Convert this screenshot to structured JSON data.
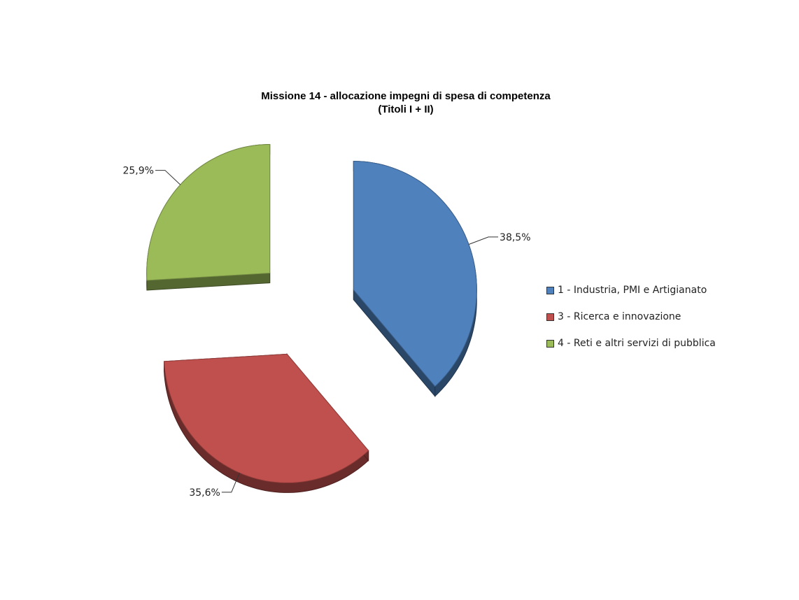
{
  "chart_data": {
    "type": "pie",
    "title_lines": [
      "Missione 14 - allocazione  impegni di spesa di competenza",
      "(Titoli I + II)"
    ],
    "categories": [
      "1 - Industria, PMI e Artigianato",
      "3 - Ricerca e innovazione",
      "4 - Reti e altri servizi di pubblica"
    ],
    "values": [
      38.5,
      35.6,
      25.9
    ],
    "value_labels": [
      "38,5%",
      "35,6%",
      "25,9%"
    ],
    "colors": [
      "#4f81bd",
      "#c0504d",
      "#9bbb59"
    ],
    "exploded": true,
    "three_d": true,
    "legend_position": "right"
  }
}
